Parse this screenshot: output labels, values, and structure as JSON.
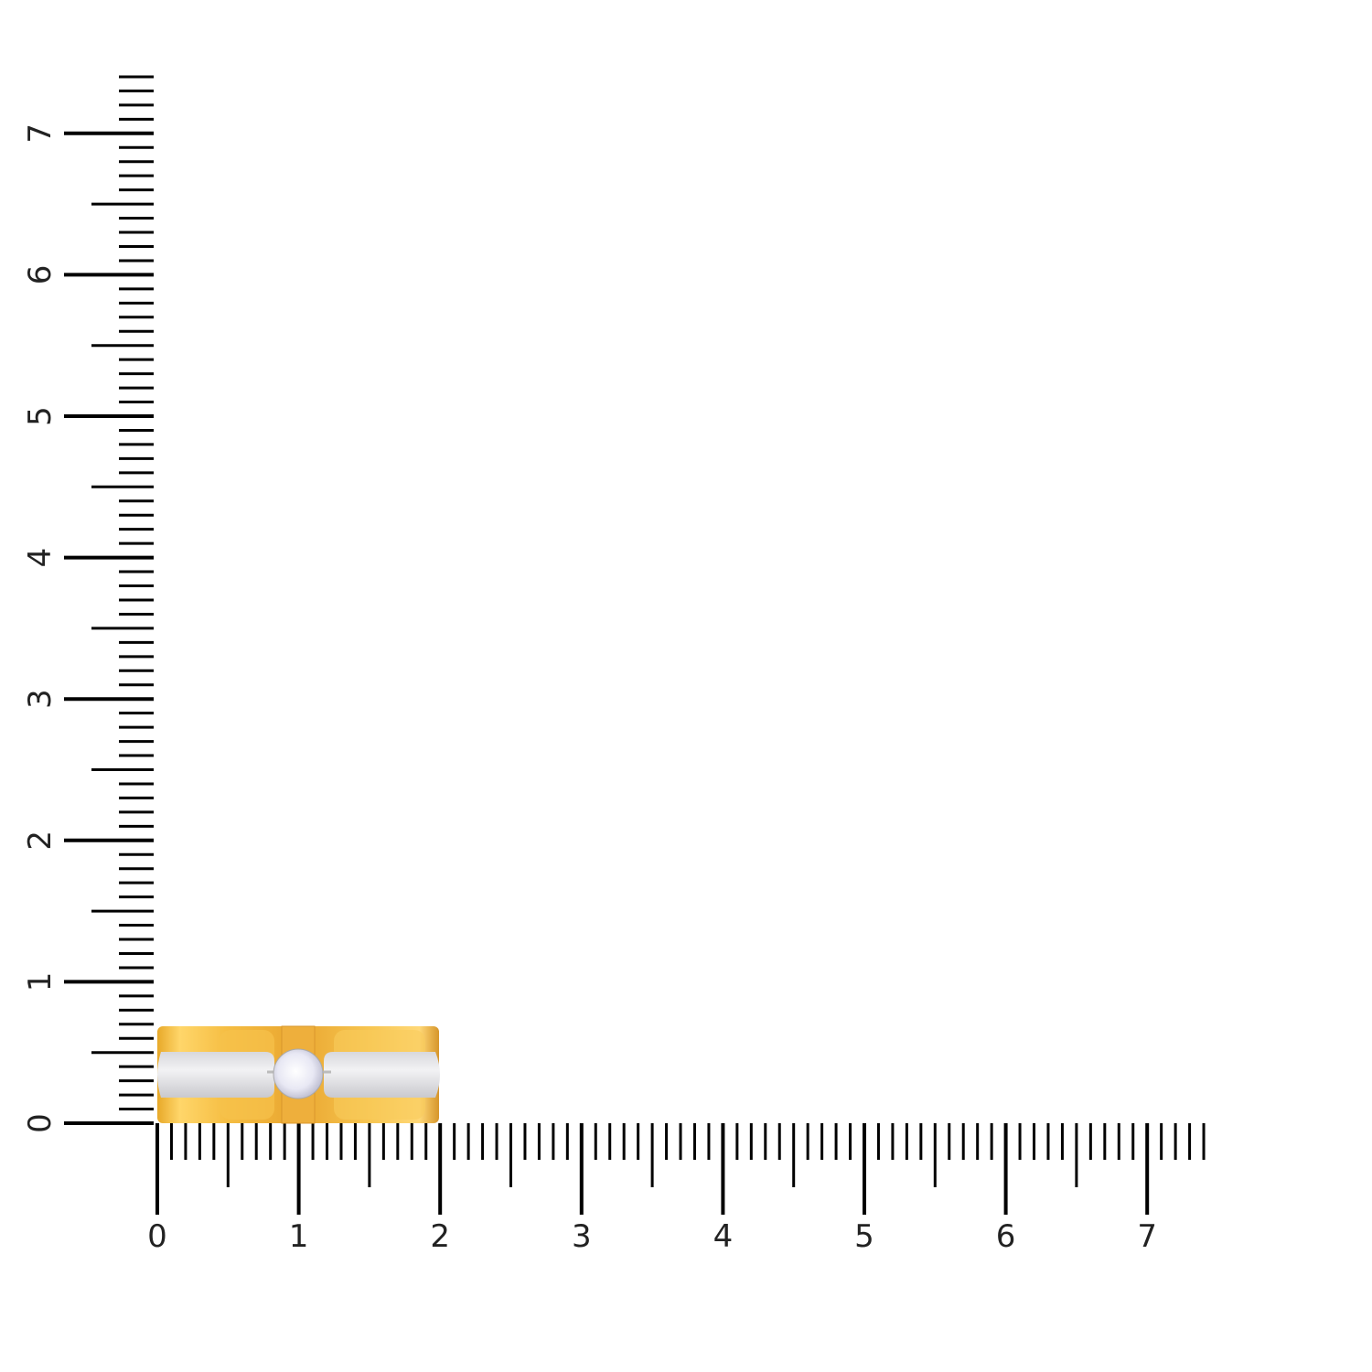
{
  "rulers": {
    "horizontal": {
      "labels": [
        "0",
        "1",
        "2",
        "3",
        "4",
        "5",
        "6",
        "7"
      ],
      "max_value": 7.4,
      "minor_step": 0.1
    },
    "vertical": {
      "labels": [
        "0",
        "1",
        "2",
        "3",
        "4",
        "5",
        "6",
        "7"
      ],
      "max_value": 7.4,
      "minor_step": 0.1
    }
  },
  "product": {
    "name": "ring",
    "colors": {
      "gold": "#f2b93a",
      "gold_light": "#ffd978",
      "white_metal": "#e4e4e6",
      "diamond": "#f4f4fa"
    }
  }
}
